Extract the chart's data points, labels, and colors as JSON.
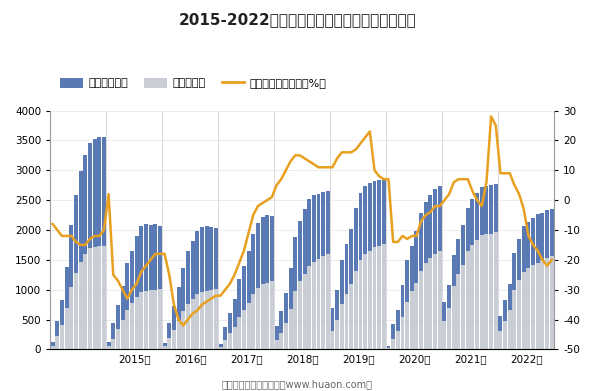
{
  "title": "2015-2022年辽宁省房地产投资额及住宅投资额",
  "ylim_left": [
    0,
    4000
  ],
  "ylim_right": [
    -50,
    30
  ],
  "yticks_left": [
    0,
    500,
    1000,
    1500,
    2000,
    2500,
    3000,
    3500,
    4000
  ],
  "yticks_right": [
    -50,
    -40,
    -30,
    -20,
    -10,
    0,
    10,
    20,
    30
  ],
  "bar_color1": "#5a7ab5",
  "bar_color2": "#c8cdd6",
  "line_color": "#e8a020",
  "footer": "制图：华经产业研究院（www.huaon.com）",
  "legend_labels": [
    "房地产投资额",
    "住宅投资额",
    "房地产投资额增速（%）"
  ],
  "real_estate": [
    130,
    480,
    820,
    1380,
    2090,
    2590,
    2980,
    3250,
    3450,
    3520,
    3560,
    3550,
    120,
    450,
    750,
    1060,
    1440,
    1650,
    1900,
    2070,
    2100,
    2090,
    2100,
    2070,
    110,
    440,
    720,
    1050,
    1370,
    1640,
    1820,
    1980,
    2050,
    2060,
    2050,
    2030,
    90,
    380,
    610,
    850,
    1180,
    1400,
    1650,
    1930,
    2120,
    2210,
    2250,
    2240,
    400,
    640,
    940,
    1360,
    1880,
    2150,
    2350,
    2520,
    2580,
    2600,
    2640,
    2650,
    700,
    1000,
    1500,
    1760,
    2020,
    2360,
    2620,
    2740,
    2790,
    2820,
    2840,
    2860,
    60,
    420,
    660,
    1080,
    1490,
    1730,
    1990,
    2280,
    2470,
    2590,
    2680,
    2730,
    800,
    1080,
    1580,
    1850,
    2090,
    2370,
    2520,
    2620,
    2720,
    2740,
    2750,
    2770,
    560,
    830,
    1100,
    1620,
    1850,
    2060,
    2130,
    2200,
    2270,
    2290,
    2330,
    2350
  ],
  "residential": [
    50,
    230,
    410,
    700,
    1050,
    1280,
    1470,
    1600,
    1700,
    1720,
    1740,
    1730,
    50,
    180,
    340,
    490,
    660,
    770,
    880,
    960,
    980,
    990,
    1000,
    1010,
    50,
    190,
    330,
    480,
    640,
    760,
    840,
    920,
    960,
    980,
    990,
    1010,
    40,
    160,
    270,
    380,
    540,
    660,
    780,
    930,
    1030,
    1090,
    1120,
    1140,
    160,
    280,
    440,
    680,
    970,
    1140,
    1270,
    1400,
    1470,
    1510,
    1560,
    1590,
    310,
    500,
    760,
    920,
    1090,
    1320,
    1500,
    1590,
    1650,
    1720,
    1740,
    1760,
    30,
    180,
    310,
    550,
    790,
    970,
    1120,
    1320,
    1450,
    1530,
    1590,
    1640,
    480,
    690,
    1060,
    1260,
    1420,
    1640,
    1750,
    1830,
    1910,
    1930,
    1940,
    1970,
    310,
    470,
    660,
    1000,
    1160,
    1300,
    1360,
    1410,
    1450,
    1490,
    1530,
    1560
  ],
  "growth_rate": [
    -8,
    -10,
    -12,
    -12,
    -12,
    -14,
    -15,
    -15,
    -13,
    -12,
    -12,
    -10,
    2,
    -25,
    -27,
    -30,
    -33,
    -30,
    -28,
    -24,
    -22,
    -20,
    -18,
    -18,
    -18,
    -25,
    -35,
    -40,
    -42,
    -40,
    -38,
    -37,
    -35,
    -34,
    -33,
    -32,
    -32,
    -30,
    -28,
    -25,
    -21,
    -17,
    -11,
    -5,
    -2,
    -1,
    0,
    1,
    5,
    7,
    10,
    13,
    15,
    15,
    14,
    13,
    12,
    11,
    11,
    11,
    11,
    14,
    16,
    16,
    16,
    17,
    19,
    21,
    23,
    10,
    8,
    7,
    7,
    -14,
    -14,
    -12,
    -13,
    -12,
    -12,
    -7,
    -5,
    -4,
    -2,
    -2,
    0,
    2,
    6,
    7,
    7,
    7,
    3,
    0,
    -2,
    6,
    28,
    25,
    9,
    9,
    9,
    5,
    2,
    -3,
    -12,
    -15,
    -17,
    -20,
    -22,
    -20
  ],
  "year_labels": [
    "2015年",
    "2016年",
    "2017年",
    "2018年",
    "2019年",
    "2020年",
    "2021年",
    "2022年"
  ],
  "background_color": "#ffffff"
}
